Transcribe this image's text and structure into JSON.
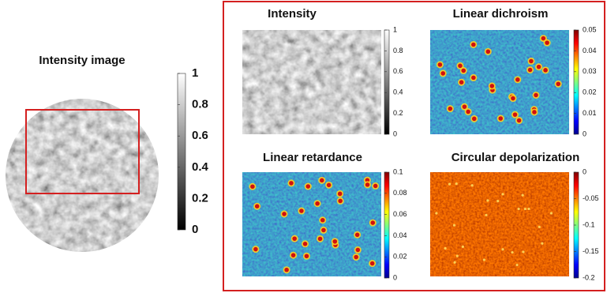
{
  "left": {
    "title": "Intensity image",
    "colorbar": {
      "ticks": [
        1,
        0.8,
        0.6,
        0.4,
        0.2,
        0
      ]
    }
  },
  "panels": [
    {
      "title": "Intensity",
      "colorbar": {
        "ticks": [
          1,
          0.8,
          0.6,
          0.4,
          0.2,
          0
        ]
      }
    },
    {
      "title": "Linear dichroism",
      "colorbar": {
        "ticks": [
          0.05,
          0.04,
          0.03,
          0.02,
          0.01,
          0
        ]
      }
    },
    {
      "title": "Linear retardance",
      "colorbar": {
        "ticks": [
          0.1,
          0.08,
          0.06,
          0.04,
          0.02,
          0
        ]
      }
    },
    {
      "title": "Circular depolarization",
      "colorbar": {
        "ticks": [
          0,
          -0.05,
          -0.1,
          -0.15,
          -0.2
        ]
      }
    }
  ]
}
